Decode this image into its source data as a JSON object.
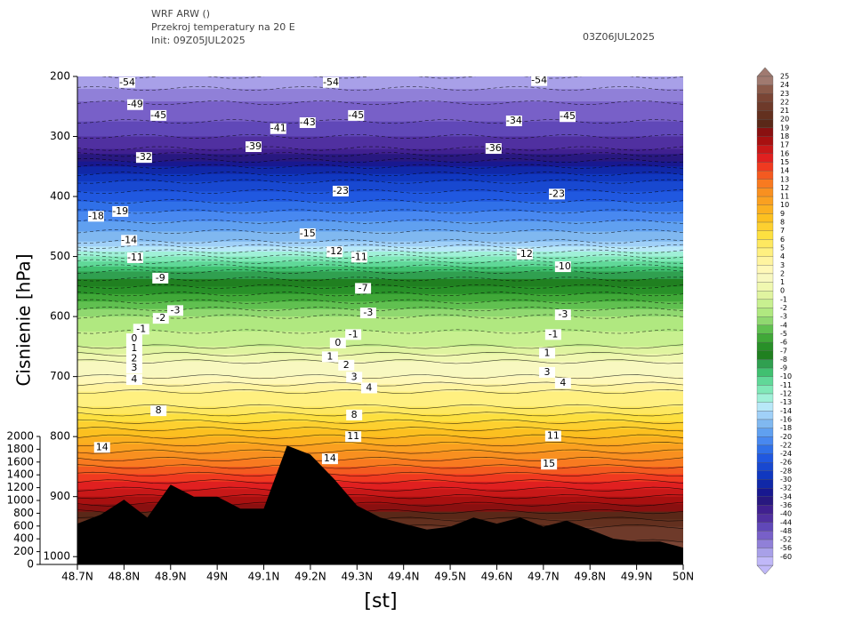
{
  "chart_data": {
    "type": "cross_section",
    "title": "WRF ARW ()",
    "subtitle": "Przekroj temperatury na 20 E",
    "init": "Init: 09Z05JUL2025",
    "valid": "03Z06JUL2025",
    "xlabel": "[st]",
    "ylabel": "Cisnienie [hPa]",
    "xlim": [
      48.7,
      50
    ],
    "xticks": [
      {
        "value": 48.7,
        "label": "48.7N"
      },
      {
        "value": 48.8,
        "label": "48.8N"
      },
      {
        "value": 48.9,
        "label": "48.9N"
      },
      {
        "value": 49,
        "label": "49N"
      },
      {
        "value": 49.1,
        "label": "49.1N"
      },
      {
        "value": 49.2,
        "label": "49.2N"
      },
      {
        "value": 49.3,
        "label": "49.3N"
      },
      {
        "value": 49.4,
        "label": "49.4N"
      },
      {
        "value": 49.5,
        "label": "49.5N"
      },
      {
        "value": 49.6,
        "label": "49.6N"
      },
      {
        "value": 49.7,
        "label": "49.7N"
      },
      {
        "value": 49.8,
        "label": "49.8N"
      },
      {
        "value": 49.9,
        "label": "49.9N"
      },
      {
        "value": 50,
        "label": "50N"
      }
    ],
    "ylim": [
      200,
      1013
    ],
    "yticks": [
      200,
      300,
      400,
      500,
      600,
      700,
      800,
      900,
      1000
    ],
    "y2lim": [
      0,
      2000
    ],
    "y2ticks": [
      0,
      200,
      400,
      600,
      800,
      1000,
      1200,
      1400,
      1600,
      1800,
      2000
    ],
    "colorbar": {
      "levels": [
        25,
        24,
        23,
        22,
        21,
        20,
        19,
        18,
        17,
        16,
        15,
        14,
        13,
        12,
        11,
        10,
        9,
        8,
        7,
        6,
        5,
        4,
        3,
        2,
        1,
        0,
        -1,
        -2,
        -3,
        -4,
        -5,
        -6,
        -7,
        -8,
        -9,
        -10,
        -11,
        -12,
        -13,
        -14,
        -16,
        -18,
        -20,
        -22,
        -24,
        -26,
        -28,
        -30,
        -32,
        -34,
        -36,
        -40,
        -44,
        -48,
        -52,
        -56,
        -60
      ],
      "colors": [
        "#a07a70",
        "#8a5a4a",
        "#7a4535",
        "#6e3a2a",
        "#63301f",
        "#5a2818",
        "#8a1010",
        "#a81010",
        "#c81818",
        "#e02020",
        "#f03a20",
        "#f45a20",
        "#f87a20",
        "#f89020",
        "#faa020",
        "#fbb020",
        "#fcc020",
        "#fdd030",
        "#fde040",
        "#fee860",
        "#fff080",
        "#fff4a0",
        "#fff8b8",
        "#f8f8c0",
        "#f0f8b0",
        "#e0f4a0",
        "#c8f090",
        "#b0e880",
        "#90d870",
        "#60c050",
        "#40a838",
        "#289028",
        "#208020",
        "#30a050",
        "#40c070",
        "#60d898",
        "#80e8b8",
        "#a0f0d8",
        "#b8e8f8",
        "#a0d0f8",
        "#80b8f0",
        "#60a0f0",
        "#4888f0",
        "#3070e8",
        "#2058e0",
        "#1848d0",
        "#1038c0",
        "#1028a8",
        "#181890",
        "#281880",
        "#402090",
        "#5030a0",
        "#6048b8",
        "#7860c8",
        "#9080d8",
        "#a8a0e8",
        "#c0b8f8"
      ]
    },
    "profile": {
      "pressure": [
        200,
        225,
        250,
        275,
        300,
        325,
        350,
        375,
        400,
        425,
        450,
        475,
        500,
        525,
        550,
        575,
        600,
        625,
        650,
        675,
        700,
        725,
        750,
        775,
        800,
        825,
        850,
        875,
        900,
        925,
        950,
        975,
        1013
      ],
      "temperature": [
        -56,
        -51,
        -47,
        -44,
        -40,
        -35,
        -30,
        -26,
        -23,
        -20,
        -17,
        -14,
        -11,
        -8,
        -6,
        -4,
        -2,
        -1,
        0,
        2,
        3,
        5,
        6,
        8,
        10,
        12,
        14,
        16,
        18,
        20,
        22,
        23,
        25
      ]
    },
    "terrain": {
      "x": [
        48.7,
        48.75,
        48.8,
        48.85,
        48.9,
        48.95,
        49.0,
        49.05,
        49.1,
        49.15,
        49.2,
        49.25,
        49.3,
        49.35,
        49.4,
        49.45,
        49.5,
        49.55,
        49.6,
        49.65,
        49.7,
        49.75,
        49.8,
        49.85,
        49.9,
        49.95,
        50.0
      ],
      "pressure": [
        945,
        930,
        905,
        935,
        880,
        900,
        900,
        920,
        920,
        815,
        830,
        870,
        915,
        935,
        945,
        955,
        950,
        935,
        945,
        935,
        950,
        940,
        955,
        970,
        975,
        975,
        985
      ]
    },
    "contour_labels": {
      "x": [
        48.807,
        48.824,
        48.874,
        48.843,
        48.74,
        48.792,
        48.811,
        48.824,
        48.878,
        48.91,
        48.879,
        48.837,
        48.822,
        48.822,
        48.822,
        48.822,
        48.822,
        48.874,
        48.753,
        49.078,
        49.131,
        49.194,
        49.244,
        49.298,
        49.265,
        49.194,
        49.252,
        49.305,
        49.313,
        49.324,
        49.292,
        49.259,
        49.242,
        49.277,
        49.294,
        49.326,
        49.294,
        49.292,
        49.242,
        49.593,
        49.637,
        49.691,
        49.752,
        49.729,
        49.66,
        49.742,
        49.742,
        49.721,
        49.708,
        49.708,
        49.742,
        49.721,
        49.712
      ],
      "pressure": [
        210,
        247,
        265,
        335,
        433,
        425,
        473,
        502,
        536,
        590,
        603,
        621,
        637,
        653,
        670,
        686,
        705,
        757,
        818,
        317,
        287,
        277,
        210,
        265,
        391,
        462,
        492,
        501,
        553,
        594,
        630,
        644,
        667,
        681,
        701,
        719,
        764,
        800,
        837,
        320,
        274,
        207,
        267,
        396,
        496,
        517,
        597,
        630,
        661,
        693,
        711,
        799,
        846
      ],
      "values": [
        -54,
        -49,
        -45,
        -32,
        -18,
        -19,
        -14,
        -11,
        -9,
        -3,
        -2,
        -1,
        0,
        1,
        2,
        3,
        4,
        8,
        14,
        -39,
        -41,
        -43,
        -54,
        -45,
        -23,
        -15,
        -12,
        -11,
        -7,
        -3,
        -1,
        0,
        1,
        2,
        3,
        4,
        8,
        11,
        14,
        -36,
        -34,
        -54,
        -45,
        -23,
        -12,
        -10,
        -3,
        -1,
        1,
        3,
        4,
        11,
        15
      ]
    }
  }
}
